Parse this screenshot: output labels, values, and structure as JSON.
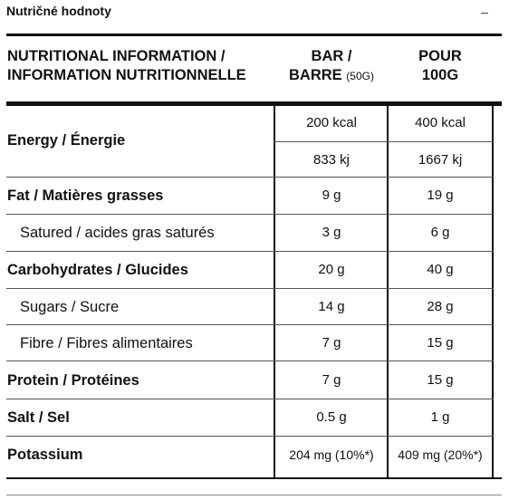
{
  "panel": {
    "title": "Nutričné hodnoty",
    "toggle": "–"
  },
  "table": {
    "header": {
      "col1_line1": "NUTRITIONAL INFORMATION /",
      "col1_line2": "INFORMATION NUTRITIONNELLE",
      "col2_line1": "BAR /",
      "col2_line2": "BARRE",
      "col2_note": "(50G)",
      "col3_line1": "POUR",
      "col3_line2": "100G"
    },
    "energy": {
      "label": "Energy / Énergie",
      "bar_kcal": "200 kcal",
      "per100_kcal": "400 kcal",
      "bar_kj": "833 kj",
      "per100_kj": "1667 kj"
    },
    "rows": [
      {
        "label": "Fat / Matières grasses",
        "bar": "9 g",
        "per100": "19 g",
        "bold": true
      },
      {
        "label": "Satured / acides gras saturés",
        "bar": "3 g",
        "per100": "6 g",
        "bold": false
      },
      {
        "label": "Carbohydrates / Glucides",
        "bar": "20 g",
        "per100": "40 g",
        "bold": true
      },
      {
        "label": "Sugars / Sucre",
        "bar": "14 g",
        "per100": "28 g",
        "bold": false
      },
      {
        "label": "Fibre / Fibres alimentaires",
        "bar": "7 g",
        "per100": "15 g",
        "bold": false
      },
      {
        "label": "Protein / Protéines",
        "bar": "7 g",
        "per100": "15 g",
        "bold": true
      },
      {
        "label": "Salt / Sel",
        "bar": "0.5 g",
        "per100": "1 g",
        "bold": true
      },
      {
        "label": "Potassium",
        "bar": "204 mg (10%*)",
        "per100": "409 mg (20%*)",
        "bold": true
      }
    ]
  }
}
